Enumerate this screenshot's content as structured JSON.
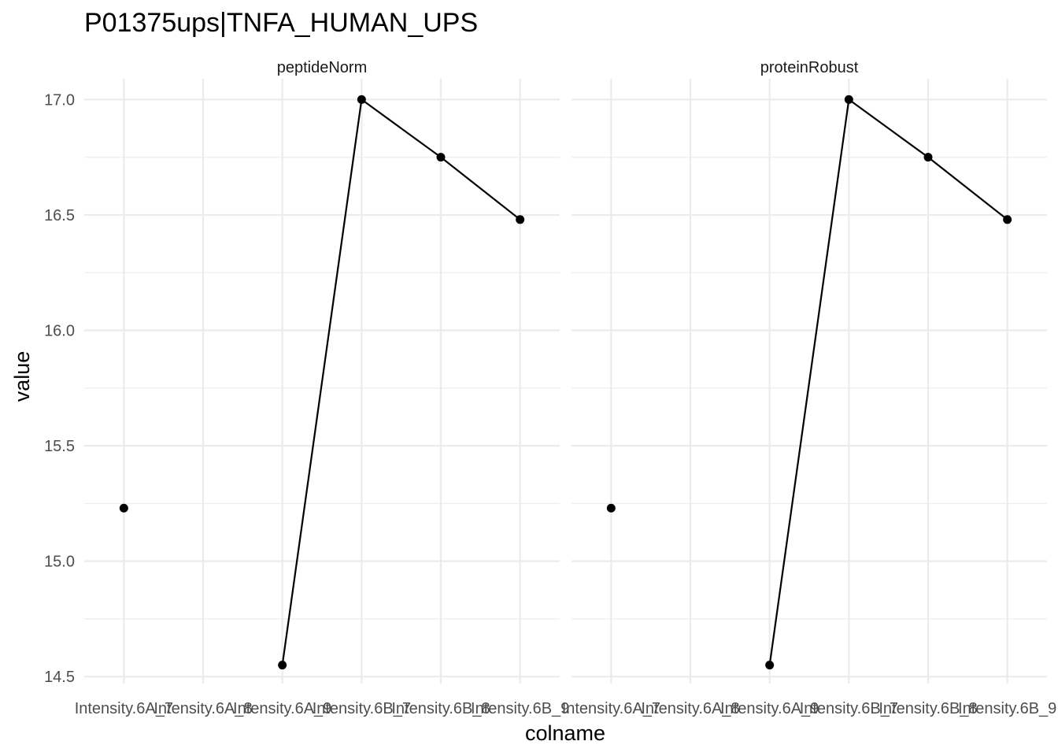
{
  "chart_data": {
    "type": "line",
    "title": "P01375ups|TNFA_HUMAN_UPS",
    "xlabel": "colname",
    "ylabel": "value",
    "categories": [
      "Intensity.6A_7",
      "Intensity.6A_8",
      "Intensity.6A_9",
      "Intensity.6B_7",
      "Intensity.6B_8",
      "Intensity.6B_9"
    ],
    "ylim": [
      14.47,
      17.09
    ],
    "yticks": [
      14.5,
      15.0,
      15.5,
      16.0,
      16.5,
      17.0
    ],
    "ytick_labels": [
      "14.5",
      "15.0",
      "15.5",
      "16.0",
      "16.5",
      "17.0"
    ],
    "grid": true,
    "legend": "none",
    "line_color": "#000000",
    "grid_color": "#ebebeb",
    "facets": [
      {
        "label": "peptideNorm",
        "values": [
          15.23,
          null,
          14.55,
          17.0,
          16.75,
          16.48
        ]
      },
      {
        "label": "proteinRobust",
        "values": [
          15.23,
          null,
          14.55,
          17.0,
          16.75,
          16.48
        ]
      }
    ]
  }
}
